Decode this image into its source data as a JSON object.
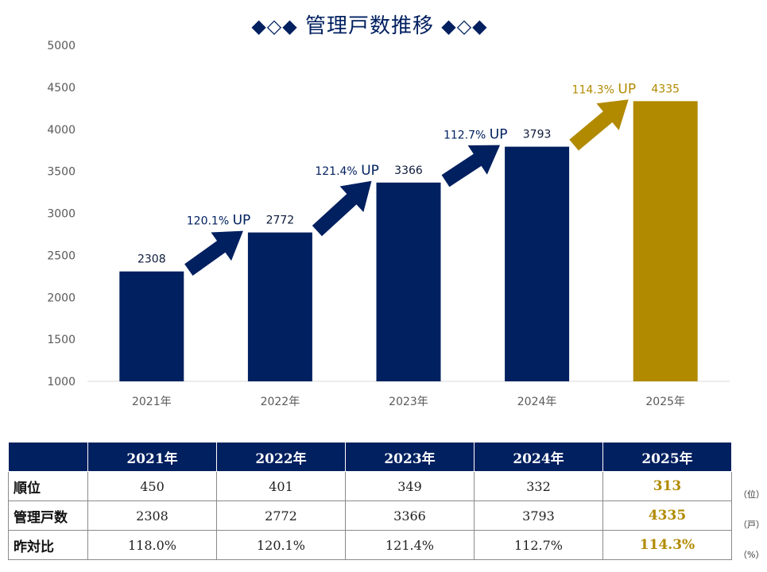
{
  "colors": {
    "navy": "#012060",
    "gold": "#b18a00",
    "axis_text": "#595959",
    "grid": "#d9d9d9"
  },
  "title": {
    "deco_left": "◆◇◆",
    "text": "管理戸数推移",
    "deco_right": "◆◇◆"
  },
  "chart_data": {
    "type": "bar",
    "categories": [
      "2021年",
      "2022年",
      "2023年",
      "2024年",
      "2025年"
    ],
    "values": [
      2308,
      2772,
      3366,
      3793,
      4335
    ],
    "data_labels": [
      "2308",
      "2772",
      "3366",
      "3793",
      "4335"
    ],
    "highlight_index": 4,
    "ylim": [
      1000,
      5000
    ],
    "yticks": [
      "1000",
      "1500",
      "2000",
      "2500",
      "3000",
      "3500",
      "4000",
      "4500",
      "5000"
    ],
    "annotations": [
      {
        "pct": "120.1%",
        "suffix": "UP"
      },
      {
        "pct": "121.4%",
        "suffix": "UP"
      },
      {
        "pct": "112.7%",
        "suffix": "UP"
      },
      {
        "pct": "114.3%",
        "suffix": "UP"
      }
    ],
    "grid": false,
    "legend": "none"
  },
  "table": {
    "headers": [
      "2021年",
      "2022年",
      "2023年",
      "2024年",
      "2025年"
    ],
    "rows": [
      {
        "label": "順位",
        "values": [
          "450",
          "401",
          "349",
          "332",
          "313"
        ],
        "unit": "（位）"
      },
      {
        "label": "管理戸数",
        "values": [
          "2308",
          "2772",
          "3366",
          "3793",
          "4335"
        ],
        "unit": "（戸）"
      },
      {
        "label": "昨対比",
        "values": [
          "118.0%",
          "120.1%",
          "121.4%",
          "112.7%",
          "114.3%"
        ],
        "unit": "（%）"
      }
    ]
  }
}
